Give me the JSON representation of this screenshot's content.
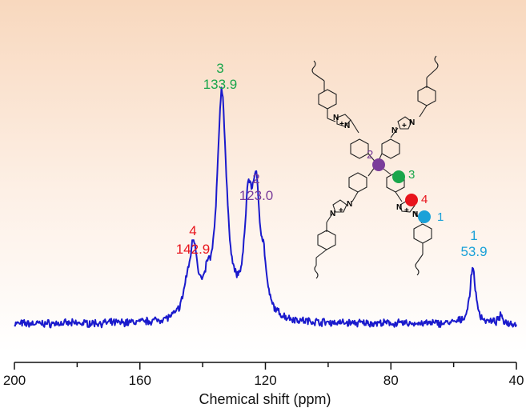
{
  "chart_data": {
    "type": "line",
    "title": "",
    "xlabel": "Chemical shift (ppm)",
    "ylabel": "",
    "xlim": [
      200,
      40
    ],
    "x_ticks": [
      "200",
      "160",
      "120",
      "80",
      "40"
    ],
    "x_minor_tick_step": 20,
    "grid": false,
    "background": "peach gradient fading to white",
    "series": [
      {
        "color": "#1a1acc",
        "peaks": [
          {
            "x": 142.9,
            "height": 0.31,
            "width": 2.0
          },
          {
            "x": 145.2,
            "height": 0.08,
            "width": 1.6
          },
          {
            "x": 138.5,
            "height": 0.1,
            "width": 1.4
          },
          {
            "x": 133.9,
            "height": 1.0,
            "width": 2.3
          },
          {
            "x": 123.0,
            "height": 0.53,
            "width": 2.1
          },
          {
            "x": 125.5,
            "height": 0.42,
            "width": 1.7
          },
          {
            "x": 120.5,
            "height": 0.14,
            "width": 1.2
          },
          {
            "x": 53.9,
            "height": 0.25,
            "width": 1.3
          },
          {
            "x": 45.0,
            "height": 0.03,
            "width": 1.0
          }
        ]
      }
    ],
    "annotations": [
      {
        "site": "4",
        "value": "142.9",
        "color": "#e8141c"
      },
      {
        "site": "3",
        "value": "133.9",
        "color": "#1aa64b"
      },
      {
        "site": "2",
        "value": "123.0",
        "color": "#7a3d9a"
      },
      {
        "site": "1",
        "value": "53.9",
        "color": "#1ba1d8"
      }
    ]
  },
  "structure": {
    "atoms": {
      "nitrogen": "N",
      "cation": "+"
    },
    "sites": [
      {
        "label": "2",
        "color": "#7a3d9a"
      },
      {
        "label": "3",
        "color": "#1aa64b"
      },
      {
        "label": "4",
        "color": "#e8141c"
      },
      {
        "label": "1",
        "color": "#1ba1d8"
      }
    ]
  }
}
